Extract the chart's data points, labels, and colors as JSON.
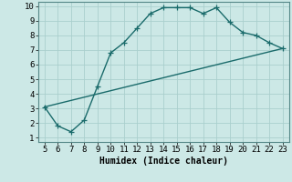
{
  "xlabel": "Humidex (Indice chaleur)",
  "bg_color": "#cce8e6",
  "grid_color": "#aacfcd",
  "line_color": "#1a6b6b",
  "xlim": [
    5,
    23
  ],
  "ylim": [
    1,
    10
  ],
  "xticks": [
    5,
    6,
    7,
    8,
    9,
    10,
    11,
    12,
    13,
    14,
    15,
    16,
    17,
    18,
    19,
    20,
    21,
    22,
    23
  ],
  "yticks": [
    1,
    2,
    3,
    4,
    5,
    6,
    7,
    8,
    9,
    10
  ],
  "curve1_x": [
    5,
    6,
    7,
    8,
    9,
    10,
    11,
    12,
    13,
    14,
    15,
    16,
    17,
    18,
    19,
    20,
    21,
    22,
    23
  ],
  "curve1_y": [
    3.1,
    1.8,
    1.4,
    2.2,
    4.5,
    6.8,
    7.5,
    8.5,
    9.5,
    9.9,
    9.9,
    9.9,
    9.5,
    9.9,
    8.9,
    8.2,
    8.0,
    7.5,
    7.1
  ],
  "curve2_x": [
    5,
    23
  ],
  "curve2_y": [
    3.1,
    7.1
  ],
  "marker_size": 4,
  "linewidth": 1.0,
  "xlabel_fontsize": 7,
  "tick_fontsize": 6.5
}
